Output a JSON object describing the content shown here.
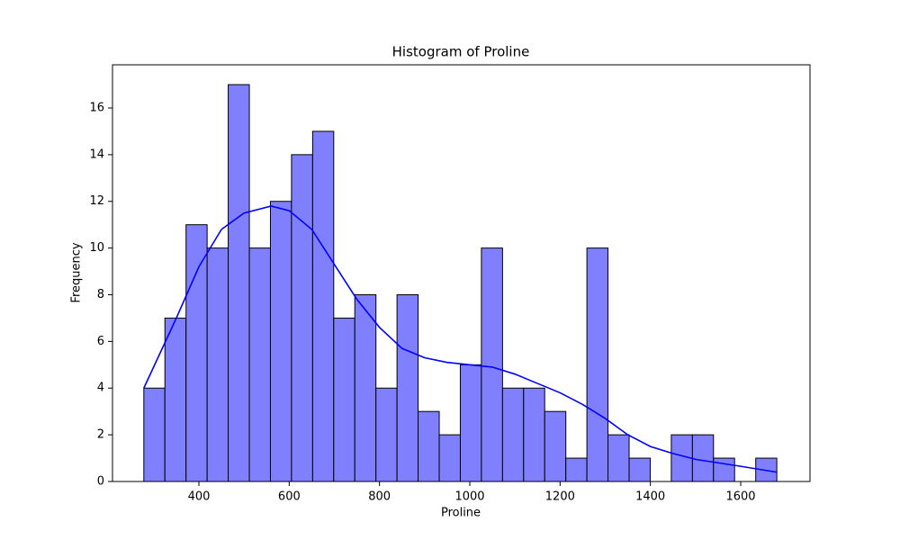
{
  "chart_data": {
    "type": "histogram",
    "title": "Histogram of Proline",
    "x_label": "Proline",
    "y_label": "Frequency",
    "bins": [
      278,
      324.7,
      371.5,
      418.2,
      464.9,
      511.7,
      558.4,
      605.1,
      651.9,
      698.6,
      745.3,
      792.1,
      838.8,
      885.5,
      932.3,
      979,
      1025.7,
      1072.5,
      1119.2,
      1165.9,
      1212.7,
      1259.4,
      1306.1,
      1352.9,
      1399.6,
      1446.3,
      1493.1,
      1539.8,
      1586.5,
      1633.3,
      1680
    ],
    "counts": [
      4,
      7,
      11,
      10,
      17,
      10,
      12,
      14,
      15,
      7,
      8,
      4,
      8,
      3,
      2,
      5,
      10,
      4,
      4,
      3,
      1,
      10,
      2,
      1,
      0,
      2,
      2,
      1,
      0,
      1
    ],
    "color": "#8080ff",
    "edgecolor": "#000000",
    "kde": {
      "color": "#0000ff",
      "x": [
        278,
        350,
        400,
        450,
        500,
        560,
        600,
        650,
        700,
        750,
        800,
        850,
        900,
        950,
        1000,
        1050,
        1100,
        1150,
        1200,
        1250,
        1300,
        1350,
        1400,
        1450,
        1500,
        1550,
        1600,
        1680
      ],
      "y": [
        4,
        7,
        9.2,
        10.8,
        11.5,
        11.8,
        11.6,
        10.8,
        9.3,
        7.8,
        6.6,
        5.7,
        5.3,
        5.1,
        5.0,
        4.9,
        4.6,
        4.2,
        3.8,
        3.3,
        2.7,
        2.0,
        1.5,
        1.2,
        0.95,
        0.8,
        0.65,
        0.4
      ]
    },
    "xlim": [
      208.6,
      1753.5
    ],
    "ylim": [
      0,
      17.85
    ],
    "xticks": [
      400,
      600,
      800,
      1000,
      1200,
      1400,
      1600
    ],
    "yticks": [
      0,
      2,
      4,
      6,
      8,
      10,
      12,
      14,
      16
    ]
  }
}
